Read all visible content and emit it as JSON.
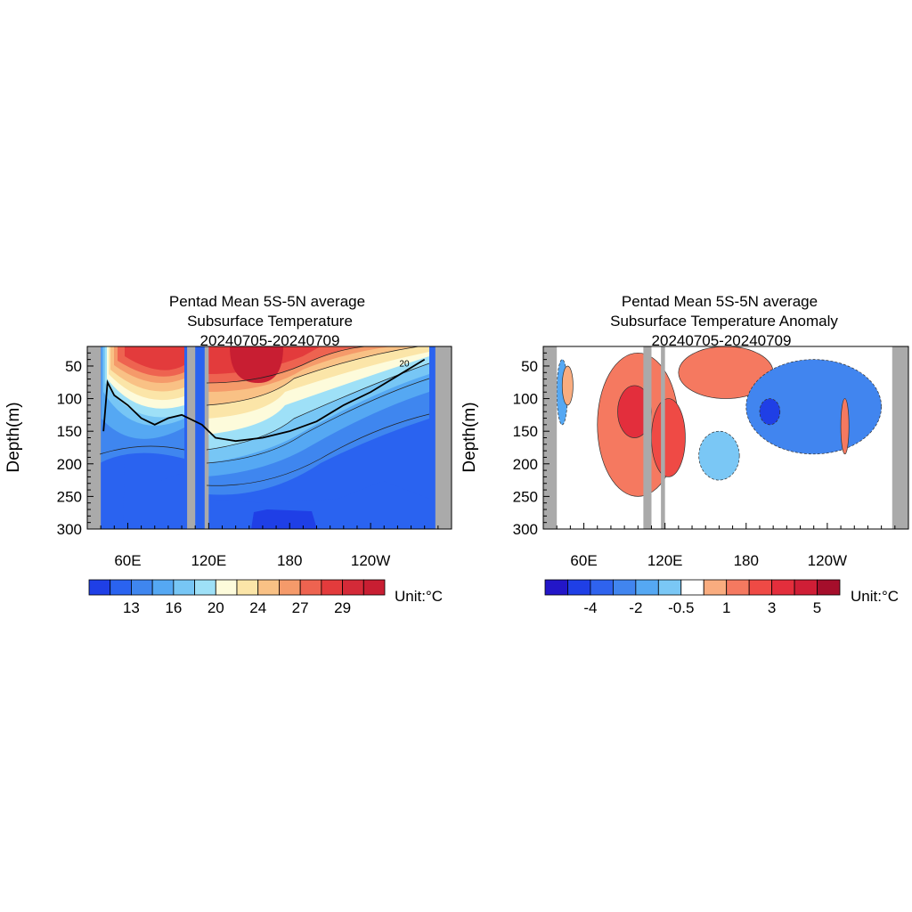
{
  "chart_data": [
    {
      "type": "heatmap",
      "title_lines": [
        "Pentad Mean 5S-5N average",
        "Subsurface Temperature",
        "20240705-20240709"
      ],
      "ylabel": "Depth(m)",
      "y_ticks": [
        50,
        100,
        150,
        200,
        250,
        300
      ],
      "ylim": [
        20,
        300
      ],
      "y_reversed": true,
      "x_ticks": [
        "60E",
        "120E",
        "180",
        "120W"
      ],
      "x_tick_lon": [
        60,
        120,
        180,
        240
      ],
      "xlim": [
        30,
        300
      ],
      "land_mask_lon_ranges": [
        [
          30,
          40
        ],
        [
          104,
          110
        ],
        [
          117,
          120
        ],
        [
          288,
          300
        ]
      ],
      "contour_labels": [
        {
          "text": "20",
          "lon": 265,
          "depth": 45
        }
      ],
      "thermocline_depth_20C": [
        [
          42,
          150
        ],
        [
          45,
          75
        ],
        [
          50,
          95
        ],
        [
          60,
          110
        ],
        [
          70,
          130
        ],
        [
          80,
          140
        ],
        [
          90,
          130
        ],
        [
          100,
          125
        ],
        [
          115,
          140
        ],
        [
          125,
          160
        ],
        [
          140,
          165
        ],
        [
          160,
          160
        ],
        [
          180,
          150
        ],
        [
          200,
          135
        ],
        [
          220,
          110
        ],
        [
          240,
          90
        ],
        [
          260,
          65
        ],
        [
          280,
          40
        ]
      ],
      "colorbar": {
        "label": "Unit:°C",
        "tick_labels": [
          "13",
          "16",
          "20",
          "24",
          "27",
          "29"
        ],
        "tick_after_index": [
          1,
          3,
          5,
          7,
          9,
          11
        ],
        "colors": [
          "#1f3fe6",
          "#2a63f0",
          "#3f86ef",
          "#55a8f3",
          "#77c6f5",
          "#9ee0f7",
          "#fdfbdb",
          "#fbe5a8",
          "#f9c185",
          "#f59a6a",
          "#ee6350",
          "#e33b3c",
          "#d42a38",
          "#c81e32"
        ]
      }
    },
    {
      "type": "heatmap",
      "title_lines": [
        "Pentad Mean 5S-5N average",
        "Subsurface Temperature Anomaly",
        "20240705-20240709"
      ],
      "ylabel": "Depth(m)",
      "y_ticks": [
        50,
        100,
        150,
        200,
        250,
        300
      ],
      "ylim": [
        20,
        300
      ],
      "y_reversed": true,
      "x_ticks": [
        "60E",
        "120E",
        "180",
        "120W"
      ],
      "x_tick_lon": [
        60,
        120,
        180,
        240
      ],
      "xlim": [
        30,
        300
      ],
      "land_mask_lon_ranges": [
        [
          30,
          40
        ],
        [
          104,
          110
        ],
        [
          117,
          120
        ],
        [
          288,
          300
        ]
      ],
      "anomaly_regions": [
        {
          "sign": "neg",
          "level": 2,
          "lon": [
            40,
            48
          ],
          "depth": [
            40,
            140
          ]
        },
        {
          "sign": "pos",
          "level": 1,
          "lon": [
            44,
            52
          ],
          "depth": [
            50,
            110
          ]
        },
        {
          "sign": "pos",
          "level": 2,
          "lon": [
            70,
            130
          ],
          "depth": [
            30,
            250
          ]
        },
        {
          "sign": "pos",
          "level": 4,
          "lon": [
            85,
            110
          ],
          "depth": [
            80,
            160
          ]
        },
        {
          "sign": "pos",
          "level": 3,
          "lon": [
            110,
            135
          ],
          "depth": [
            100,
            220
          ]
        },
        {
          "sign": "pos",
          "level": 2,
          "lon": [
            130,
            200
          ],
          "depth": [
            20,
            100
          ]
        },
        {
          "sign": "neg",
          "level": 1,
          "lon": [
            145,
            175
          ],
          "depth": [
            150,
            225
          ]
        },
        {
          "sign": "neg",
          "level": 3,
          "lon": [
            180,
            280
          ],
          "depth": [
            40,
            185
          ]
        },
        {
          "sign": "neg",
          "level": 5,
          "lon": [
            190,
            205
          ],
          "depth": [
            100,
            140
          ]
        },
        {
          "sign": "pos",
          "level": 2,
          "lon": [
            250,
            256
          ],
          "depth": [
            100,
            185
          ]
        }
      ],
      "colorbar": {
        "label": "Unit:°C",
        "tick_labels": [
          "-4",
          "-2",
          "-0.5",
          "1",
          "3",
          "5"
        ],
        "tick_after_index": [
          1,
          3,
          5,
          7,
          9,
          11
        ],
        "colors": [
          "#2316c8",
          "#1f3fe6",
          "#2f63ee",
          "#4185ef",
          "#55a8f3",
          "#7ac7f5",
          "#ffffff",
          "#f9ac7f",
          "#f57960",
          "#ef4a45",
          "#e32e3c",
          "#cf1e36",
          "#a50e2b"
        ]
      }
    }
  ]
}
